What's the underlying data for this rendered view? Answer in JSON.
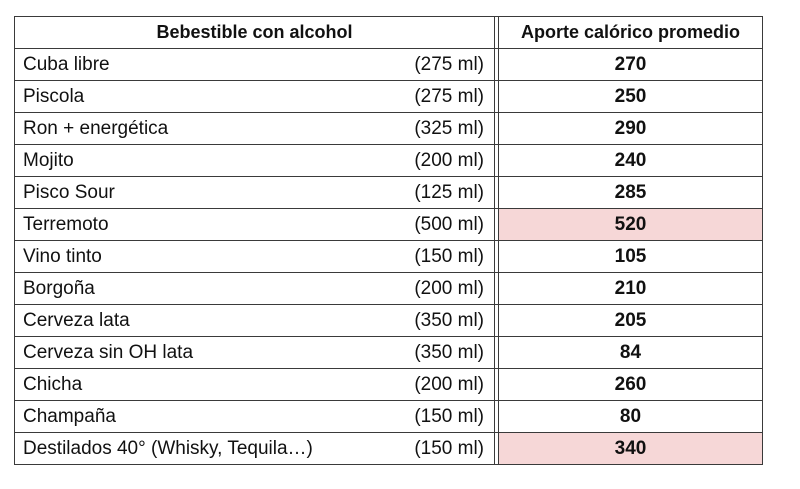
{
  "table": {
    "headers": {
      "drink": "Bebestible con alcohol",
      "calories": "Aporte calórico promedio"
    },
    "highlight_color": "#f6d7d7",
    "rows": [
      {
        "name": "Cuba libre",
        "volume": "(275 ml)",
        "calories": "270",
        "highlight": false
      },
      {
        "name": "Piscola",
        "volume": "(275 ml)",
        "calories": "250",
        "highlight": false
      },
      {
        "name": "Ron + energética",
        "volume": "(325 ml)",
        "calories": "290",
        "highlight": false
      },
      {
        "name": "Mojito",
        "volume": "(200 ml)",
        "calories": "240",
        "highlight": false
      },
      {
        "name": "Pisco Sour",
        "volume": "(125 ml)",
        "calories": "285",
        "highlight": false
      },
      {
        "name": "Terremoto",
        "volume": "(500 ml)",
        "calories": "520",
        "highlight": true
      },
      {
        "name": "Vino tinto",
        "volume": "(150 ml)",
        "calories": "105",
        "highlight": false
      },
      {
        "name": "Borgoña",
        "volume": "(200 ml)",
        "calories": "210",
        "highlight": false
      },
      {
        "name": "Cerveza lata",
        "volume": "(350 ml)",
        "calories": "205",
        "highlight": false
      },
      {
        "name": "Cerveza sin OH lata",
        "volume": "(350 ml)",
        "calories": "84",
        "highlight": false
      },
      {
        "name": "Chicha",
        "volume": "(200 ml)",
        "calories": "260",
        "highlight": false
      },
      {
        "name": "Champaña",
        "volume": "(150 ml)",
        "calories": "80",
        "highlight": false
      },
      {
        "name": "Destilados 40° (Whisky, Tequila…)",
        "volume": "(150 ml)",
        "calories": "340",
        "highlight": true
      }
    ]
  }
}
